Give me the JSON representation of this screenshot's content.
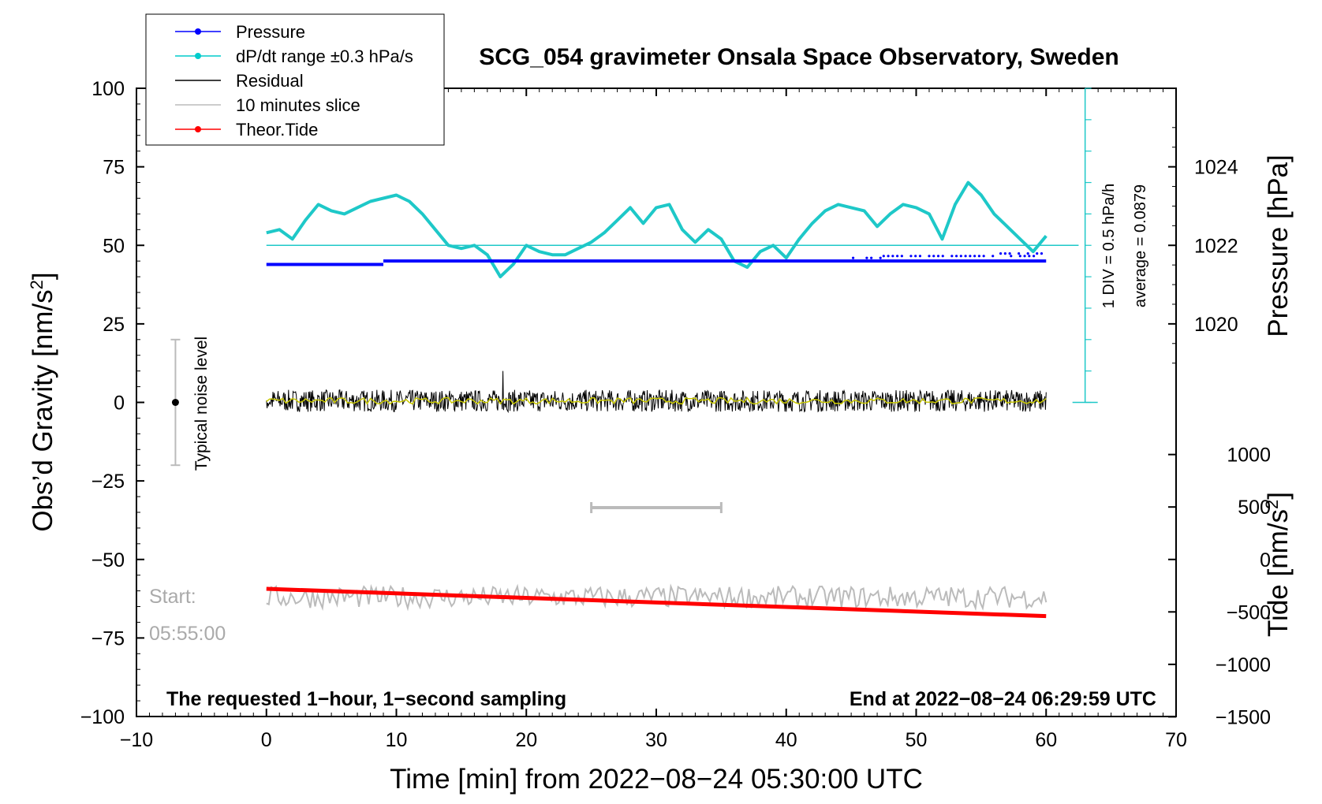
{
  "chart_data": {
    "type": "line",
    "title": "SCG_054 gravimeter Onsala Space Observatory, Sweden",
    "xlabel": "Time [min] from 2022−08−24 05:30:00 UTC",
    "ylabel_left": "Obs’d Gravity [nm/s",
    "ylabel_left_sup": "2",
    "ylabel_left_close": "]",
    "ylabel_right_top": "Pressure [hPa]",
    "ylabel_right_bottom": "Tide [nm/s",
    "ylabel_right_bottom_sup": "2",
    "ylabel_right_bottom_close": "]",
    "xlim": [
      -10,
      70
    ],
    "ylim": [
      -100,
      100
    ],
    "x_ticks": [
      "−10",
      "0",
      "10",
      "20",
      "30",
      "40",
      "50",
      "60",
      "70"
    ],
    "y_ticks": [
      "100",
      "75",
      "50",
      "25",
      "0",
      "−25",
      "−50",
      "−75",
      "−100"
    ],
    "pressure_ticks": [
      "1024",
      "1022",
      "1020"
    ],
    "tide_ticks": [
      "1000",
      "500",
      "0",
      "−500",
      "−1000",
      "−1500"
    ],
    "legend": [
      {
        "label": "Pressure",
        "color": "#0000ff",
        "marker": true
      },
      {
        "label": "dP/dt range ±0.3 hPa/s",
        "color": "#00cccc",
        "marker": true
      },
      {
        "label": "Residual",
        "color": "#000000",
        "marker": false
      },
      {
        "label": "10 minutes slice",
        "color": "#bbbbbb",
        "marker": false
      },
      {
        "label": "Theor.Tide",
        "color": "#ff0000",
        "marker": true
      }
    ],
    "annotations": {
      "noise": "Typical noise level",
      "div": "1 DIV = 0.5 hPa/h",
      "average": "average = 0.0879",
      "start_label": "Start:",
      "start_time": "05:55:00",
      "bottom_left": "The requested 1−hour, 1−second sampling",
      "bottom_right": "End at 2022−08−24 06:29:59 UTC"
    },
    "series": [
      {
        "name": "dP/dt",
        "axis": "left",
        "color": "#1ec8c8",
        "x": [
          0,
          1,
          2,
          3,
          4,
          5,
          6,
          7,
          8,
          9,
          10,
          11,
          12,
          13,
          14,
          15,
          16,
          17,
          18,
          19,
          20,
          21,
          22,
          23,
          24,
          25,
          26,
          27,
          28,
          29,
          30,
          31,
          32,
          33,
          34,
          35,
          36,
          37,
          38,
          39,
          40,
          41,
          42,
          43,
          44,
          45,
          46,
          47,
          48,
          49,
          50,
          51,
          52,
          53,
          54,
          55,
          56,
          57,
          58,
          59,
          60
        ],
        "y": [
          54,
          55,
          52,
          58,
          63,
          61,
          60,
          62,
          64,
          65,
          66,
          64,
          60,
          55,
          50,
          49,
          50,
          47,
          40,
          44,
          50,
          48,
          47,
          47,
          49,
          51,
          54,
          58,
          62,
          57,
          62,
          63,
          55,
          51,
          55,
          52,
          45,
          43,
          48,
          50,
          46,
          52,
          57,
          61,
          63,
          62,
          61,
          56,
          60,
          63,
          62,
          60,
          52,
          63,
          70,
          66,
          60,
          56,
          52,
          48,
          53
        ]
      },
      {
        "name": "Pressure",
        "axis": "left",
        "color": "#0000ff",
        "segments": [
          {
            "x": [
              0,
              9
            ],
            "y": 43.9
          },
          {
            "x": [
              9,
              60
            ],
            "y": 45.0
          }
        ],
        "scatter": [
          {
            "x": [
              44.8,
              47.5
            ],
            "y": 46.0
          },
          {
            "x": [
              47.5,
              60
            ],
            "y": 46.6
          },
          {
            "x": [
              56.5,
              60
            ],
            "y": 47.4
          }
        ]
      },
      {
        "name": "Residual",
        "axis": "left",
        "color": "#000000",
        "x_range": [
          0,
          60
        ],
        "y_center": 0.5,
        "amplitude": 3.5,
        "spike_x": 18.2,
        "spike_range": [
          -10,
          10
        ]
      },
      {
        "name": "10 minutes slice",
        "axis": "left",
        "color": "#bbbbbb",
        "x_range": [
          0,
          60
        ],
        "y_center": -62,
        "amplitude": 3.5,
        "bar_x": [
          25,
          35
        ],
        "bar_y": -33.5
      },
      {
        "name": "Theor.Tide",
        "axis": "tide",
        "color": "#ff0000",
        "x": [
          0,
          60
        ],
        "y": [
          -280,
          -540
        ]
      },
      {
        "name": "Typical noise level",
        "axis": "left",
        "color": "#bbbbbb",
        "x": -7,
        "y_range": [
          -20,
          20
        ]
      }
    ]
  }
}
